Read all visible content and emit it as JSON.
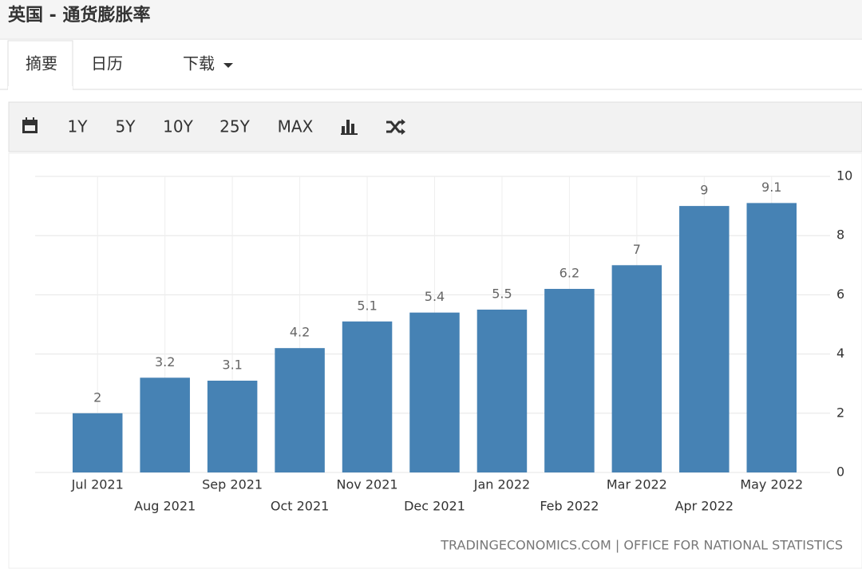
{
  "header": {
    "title": "英国 - 通货膨胀率"
  },
  "tabs": [
    "摘要",
    "日历",
    "下载"
  ],
  "toolbar": [
    "1Y",
    "5Y",
    "10Y",
    "25Y",
    "MAX"
  ],
  "chart_data": {
    "type": "bar",
    "categories": [
      "Jul 2021",
      "Aug 2021",
      "Sep 2021",
      "Oct 2021",
      "Nov 2021",
      "Dec 2021",
      "Jan 2022",
      "Feb 2022",
      "Mar 2022",
      "Apr 2022",
      "May 2022"
    ],
    "values": [
      2,
      3.2,
      3.1,
      4.2,
      5.1,
      5.4,
      5.5,
      6.2,
      7,
      9,
      9.1
    ],
    "color": "#4682b4",
    "ylim": [
      0,
      10
    ],
    "yticks": [
      0,
      2,
      4,
      6,
      8,
      10
    ],
    "grid": true,
    "y_axis_side": "right"
  },
  "source": "TRADINGECONOMICS.COM | OFFICE FOR NATIONAL STATISTICS"
}
